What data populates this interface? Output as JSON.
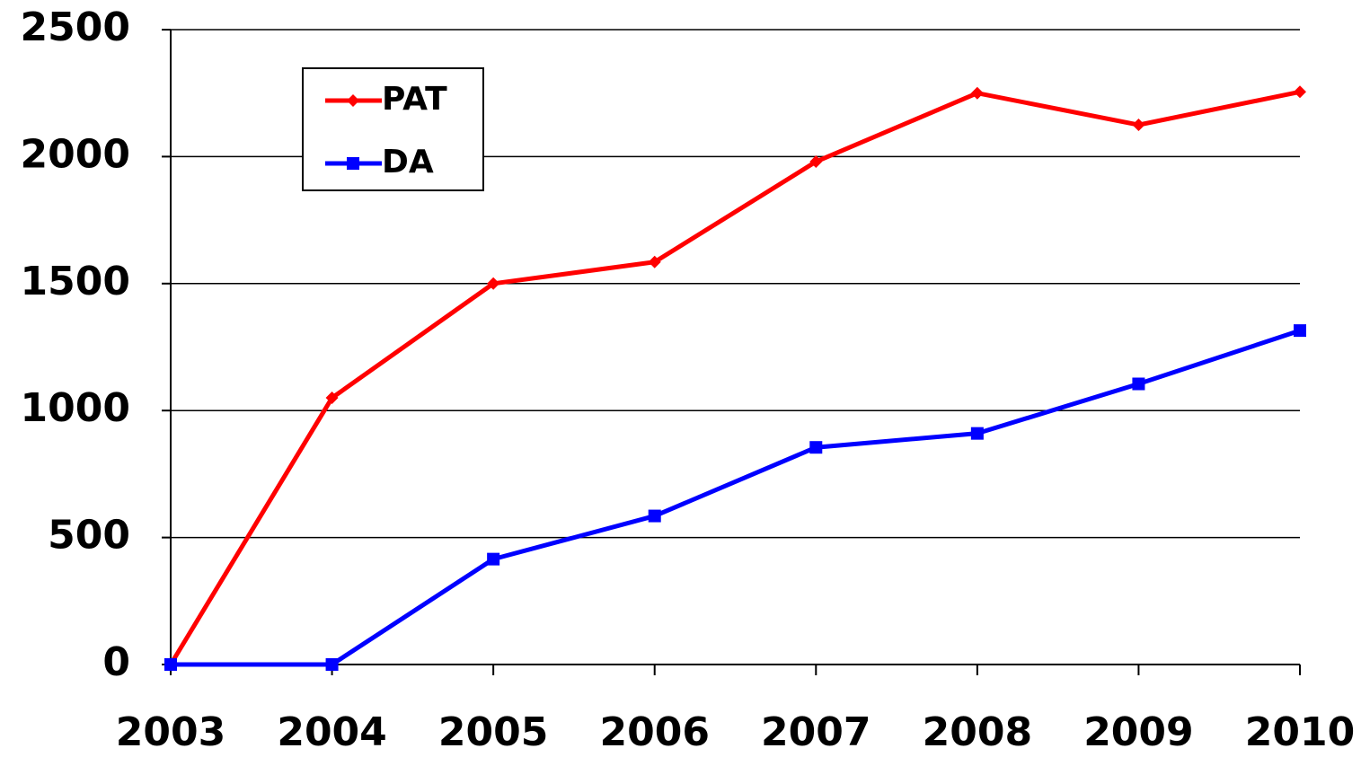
{
  "chart_data": {
    "type": "line",
    "categories": [
      "2003",
      "2004",
      "2005",
      "2006",
      "2007",
      "2008",
      "2009",
      "2010"
    ],
    "series": [
      {
        "name": "PAT",
        "color": "#ff0000",
        "marker": "diamond",
        "values": [
          0,
          1050,
          1500,
          1585,
          1980,
          2250,
          2125,
          2255
        ]
      },
      {
        "name": "DA",
        "color": "#0000ff",
        "marker": "square",
        "values": [
          0,
          0,
          415,
          585,
          855,
          910,
          1105,
          1315
        ]
      }
    ],
    "ylim": [
      0,
      2500
    ],
    "yticks": [
      0,
      500,
      1000,
      1500,
      2000,
      2500
    ],
    "grid": true,
    "legend": "top-left"
  }
}
